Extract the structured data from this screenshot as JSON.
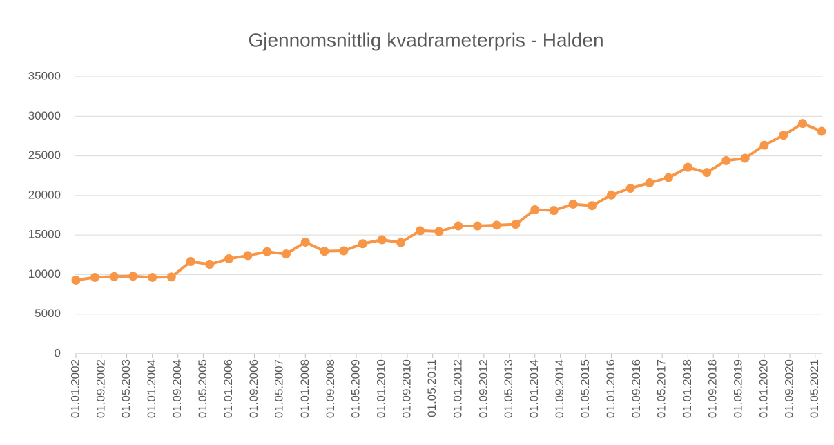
{
  "chart_data": {
    "type": "line",
    "title": "Gjennomsnittlig kvadrameterpris - Halden",
    "x": [
      "2002-01-01",
      "2002-07-01",
      "2003-01-01",
      "2003-07-01",
      "2004-01-01",
      "2004-07-01",
      "2005-01-01",
      "2005-07-01",
      "2006-01-01",
      "2006-07-01",
      "2007-01-01",
      "2007-07-01",
      "2008-01-01",
      "2008-07-01",
      "2009-01-01",
      "2009-07-01",
      "2010-01-01",
      "2010-07-01",
      "2011-01-01",
      "2011-07-01",
      "2012-01-01",
      "2012-07-01",
      "2013-01-01",
      "2013-07-01",
      "2014-01-01",
      "2014-07-01",
      "2015-01-01",
      "2015-07-01",
      "2016-01-01",
      "2016-07-01",
      "2017-01-01",
      "2017-07-01",
      "2018-01-01",
      "2018-07-01",
      "2019-01-01",
      "2019-07-01",
      "2020-01-01",
      "2020-07-01",
      "2021-01-01",
      "2021-07-01"
    ],
    "series": [
      {
        "name": "Halden",
        "color": "#f79646",
        "values": [
          9300,
          9650,
          9750,
          9800,
          9650,
          9700,
          11650,
          11300,
          12000,
          12400,
          12900,
          12600,
          14100,
          12950,
          13000,
          13900,
          14400,
          14050,
          15550,
          15450,
          16150,
          16150,
          16250,
          16350,
          18200,
          18100,
          18900,
          18700,
          20050,
          20900,
          21600,
          22250,
          23550,
          22900,
          24400,
          24700,
          26350,
          27600,
          29100,
          28100
        ]
      }
    ],
    "xlim": [
      "2002-01-01",
      "2021-07-01"
    ],
    "xticks": [
      {
        "value": "2002-01-01",
        "label": "01.01.2002"
      },
      {
        "value": "2002-09-01",
        "label": "01.09.2002"
      },
      {
        "value": "2003-05-01",
        "label": "01.05.2003"
      },
      {
        "value": "2004-01-01",
        "label": "01.01.2004"
      },
      {
        "value": "2004-09-01",
        "label": "01.09.2004"
      },
      {
        "value": "2005-05-01",
        "label": "01.05.2005"
      },
      {
        "value": "2006-01-01",
        "label": "01.01.2006"
      },
      {
        "value": "2006-09-01",
        "label": "01.09.2006"
      },
      {
        "value": "2007-05-01",
        "label": "01.05.2007"
      },
      {
        "value": "2008-01-01",
        "label": "01.01.2008"
      },
      {
        "value": "2008-09-01",
        "label": "01.09.2008"
      },
      {
        "value": "2009-05-01",
        "label": "01.05.2009"
      },
      {
        "value": "2010-01-01",
        "label": "01.01.2010"
      },
      {
        "value": "2010-09-01",
        "label": "01.09.2010"
      },
      {
        "value": "2011-05-01",
        "label": "01.05.2011"
      },
      {
        "value": "2012-01-01",
        "label": "01.01.2012"
      },
      {
        "value": "2012-09-01",
        "label": "01.09.2012"
      },
      {
        "value": "2013-05-01",
        "label": "01.05.2013"
      },
      {
        "value": "2014-01-01",
        "label": "01.01.2014"
      },
      {
        "value": "2014-09-01",
        "label": "01.09.2014"
      },
      {
        "value": "2015-05-01",
        "label": "01.05.2015"
      },
      {
        "value": "2016-01-01",
        "label": "01.01.2016"
      },
      {
        "value": "2016-09-01",
        "label": "01.09.2016"
      },
      {
        "value": "2017-05-01",
        "label": "01.05.2017"
      },
      {
        "value": "2018-01-01",
        "label": "01.01.2018"
      },
      {
        "value": "2018-09-01",
        "label": "01.09.2018"
      },
      {
        "value": "2019-05-01",
        "label": "01.05.2019"
      },
      {
        "value": "2020-01-01",
        "label": "01.01.2020"
      },
      {
        "value": "2020-09-01",
        "label": "01.09.2020"
      },
      {
        "value": "2021-05-01",
        "label": "01.05.2021"
      }
    ],
    "ylim": [
      0,
      35000
    ],
    "yticks": [
      0,
      5000,
      10000,
      15000,
      20000,
      25000,
      30000,
      35000
    ],
    "grid": true
  }
}
